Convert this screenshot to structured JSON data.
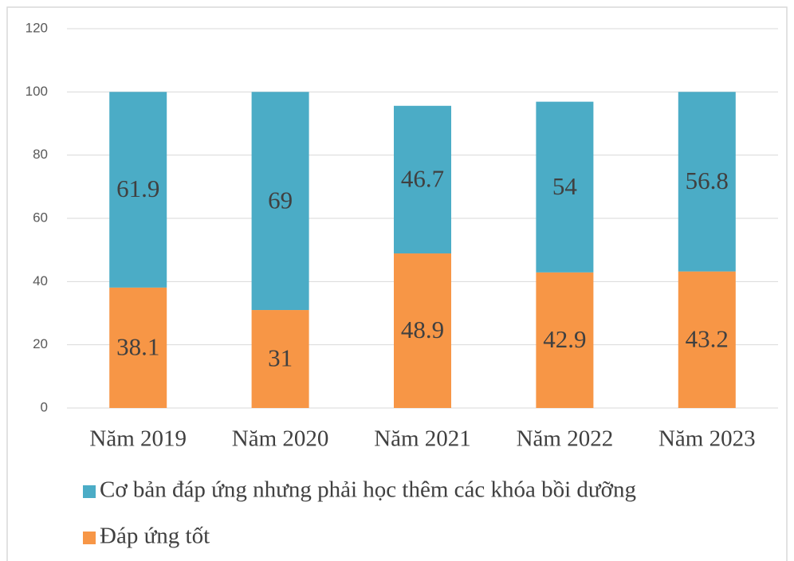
{
  "chart_data": {
    "type": "stacked_bar",
    "categories": [
      "Năm 2019",
      "Năm 2020",
      "Năm 2021",
      "Năm 2022",
      "Năm 2023"
    ],
    "series": [
      {
        "name": "Đáp ứng tốt",
        "color": "#f79646",
        "values": [
          38.1,
          31,
          48.9,
          42.9,
          43.2
        ]
      },
      {
        "name": "Cơ bản đáp ứng nhưng phải học thêm các khóa bồi dưỡng",
        "color": "#4bacc6",
        "values": [
          61.9,
          69,
          46.7,
          54,
          56.8
        ]
      }
    ],
    "ylim": [
      0,
      120
    ],
    "yticks": [
      0,
      20,
      40,
      60,
      80,
      100,
      120
    ],
    "grid": true
  }
}
